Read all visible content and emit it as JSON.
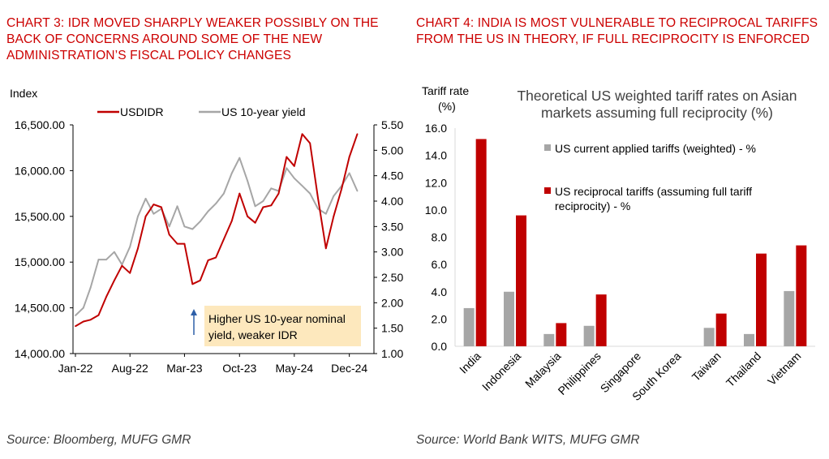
{
  "chart3": {
    "heading": "CHART 3: IDR MOVED SHARPLY WEAKER POSSIBLY ON THE BACK OF CONCERNS AROUND SOME OF THE NEW ADMINISTRATION’S FISCAL POLICY CHANGES",
    "source": "Source: Bloomberg, MUFG GMR",
    "left_axis_title": "Index",
    "annotation_line1": "Higher US 10-year nominal",
    "annotation_line2": "yield, weaker IDR"
  },
  "chart4": {
    "heading": "CHART 4: INDIA IS MOST VULNERABLE TO RECIPROCAL TARIFFS FROM THE US IN THEORY, IF FULL RECIPROCITY IS ENFORCED",
    "source": "Source: World Bank WITS, MUFG GMR",
    "ylabel_line1": "Tariff rate",
    "ylabel_line2": "(%)",
    "title_line1": "Theoretical US weighted tariff rates on Asian",
    "title_line2": "markets assuming full reciprocity (%)",
    "legend_current": "US current applied tariffs (weighted) - %",
    "legend_reciprocal_line1": "US reciprocal tariffs (assuming full tariff",
    "legend_reciprocal_line2": "reciprocity) - %"
  },
  "chart_data": [
    {
      "type": "line",
      "y_left_ticks": [
        "14,000.00",
        "14,500.00",
        "15,000.00",
        "15,500.00",
        "16,000.00",
        "16,500.00"
      ],
      "y_right_ticks": [
        "1.00",
        "1.50",
        "2.00",
        "2.50",
        "3.00",
        "3.50",
        "4.00",
        "4.50",
        "5.00",
        "5.50"
      ],
      "x_ticks": [
        "Jan-22",
        "Aug-22",
        "Mar-23",
        "Oct-23",
        "May-24",
        "Dec-24"
      ],
      "ylim_left": [
        14000,
        16500
      ],
      "ylim_right": [
        1.0,
        5.5
      ],
      "legend_placement": "top",
      "series": [
        {
          "name": "USDIDR",
          "axis": "left",
          "color": "#c00000",
          "dates": [
            "2022-01",
            "2022-02",
            "2022-03",
            "2022-04",
            "2022-05",
            "2022-06",
            "2022-07",
            "2022-08",
            "2022-09",
            "2022-10",
            "2022-11",
            "2022-12",
            "2023-01",
            "2023-02",
            "2023-03",
            "2023-04",
            "2023-05",
            "2023-06",
            "2023-07",
            "2023-08",
            "2023-09",
            "2023-10",
            "2023-11",
            "2023-12",
            "2024-01",
            "2024-02",
            "2024-03",
            "2024-04",
            "2024-05",
            "2024-06",
            "2024-07",
            "2024-08",
            "2024-09",
            "2024-10",
            "2024-11",
            "2024-12",
            "2025-01"
          ],
          "values": [
            14300,
            14350,
            14370,
            14420,
            14620,
            14800,
            14960,
            14880,
            15150,
            15500,
            15630,
            15600,
            15300,
            15200,
            15200,
            14760,
            14800,
            15020,
            15050,
            15250,
            15450,
            15750,
            15500,
            15430,
            15600,
            15620,
            15750,
            16150,
            16050,
            16400,
            16300,
            15700,
            15150,
            15500,
            15800,
            16150,
            16400
          ]
        },
        {
          "name": "US 10-year yield",
          "axis": "right",
          "color": "#a6a6a6",
          "dates": [
            "2022-01",
            "2022-02",
            "2022-03",
            "2022-04",
            "2022-05",
            "2022-06",
            "2022-07",
            "2022-08",
            "2022-09",
            "2022-10",
            "2022-11",
            "2022-12",
            "2023-01",
            "2023-02",
            "2023-03",
            "2023-04",
            "2023-05",
            "2023-06",
            "2023-07",
            "2023-08",
            "2023-09",
            "2023-10",
            "2023-11",
            "2023-12",
            "2024-01",
            "2024-02",
            "2024-03",
            "2024-04",
            "2024-05",
            "2024-06",
            "2024-07",
            "2024-08",
            "2024-09",
            "2024-10",
            "2024-11",
            "2024-12",
            "2025-01"
          ],
          "values": [
            1.75,
            1.9,
            2.3,
            2.85,
            2.85,
            3.0,
            2.75,
            3.1,
            3.7,
            4.05,
            3.75,
            3.85,
            3.5,
            3.9,
            3.5,
            3.45,
            3.6,
            3.8,
            3.95,
            4.15,
            4.55,
            4.85,
            4.4,
            3.9,
            4.0,
            4.25,
            4.2,
            4.65,
            4.45,
            4.3,
            4.15,
            3.85,
            3.75,
            4.1,
            4.3,
            4.55,
            4.2
          ]
        }
      ]
    },
    {
      "type": "bar",
      "categories": [
        "India",
        "Indonesia",
        "Malaysia",
        "Philippines",
        "Singapore",
        "South Korea",
        "Taiwan",
        "Thailand",
        "Vietnam"
      ],
      "y_ticks": [
        "0.0",
        "2.0",
        "4.0",
        "6.0",
        "8.0",
        "10.0",
        "12.0",
        "14.0",
        "16.0"
      ],
      "ylim": [
        0,
        16
      ],
      "legend_placement": "inside-top",
      "series": [
        {
          "name": "US current applied tariffs (weighted) - %",
          "color": "#a6a6a6",
          "values": [
            2.8,
            4.0,
            0.9,
            1.5,
            0.0,
            0.0,
            1.35,
            0.9,
            4.05
          ]
        },
        {
          "name": "US reciprocal tariffs (assuming full tariff reciprocity) - %",
          "color": "#c00000",
          "values": [
            15.2,
            9.6,
            1.7,
            3.8,
            0.0,
            0.0,
            2.4,
            6.8,
            7.4
          ]
        }
      ]
    }
  ]
}
